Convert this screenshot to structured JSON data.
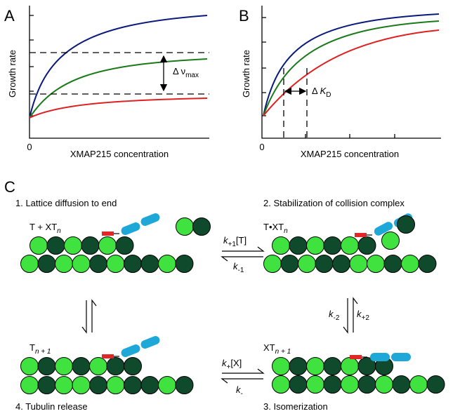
{
  "panels": [
    {
      "label": "A",
      "y_axis_label": "Growth rate",
      "x_axis_label": "XMAP215 concentration",
      "origin_label": "0",
      "annotation": {
        "parts": [
          {
            "text": "Δ ν"
          },
          {
            "text": "max",
            "sub": true
          }
        ]
      }
    },
    {
      "label": "B",
      "y_axis_label": "Growth rate",
      "x_axis_label": "XMAP215 concentration",
      "origin_label": "0",
      "annotation": {
        "parts": [
          {
            "text": "Δ "
          },
          {
            "text": "K",
            "italic": true
          },
          {
            "text": "D",
            "sub": true
          }
        ]
      }
    }
  ],
  "panel_c": {
    "label": "C",
    "steps": [
      {
        "title": "1.  Lattice diffusion to end",
        "state": {
          "parts": [
            {
              "text": "T + XT"
            },
            {
              "text": "n",
              "sub": true,
              "italic": true
            }
          ]
        }
      },
      {
        "title": "2.  Stabilization of collision complex",
        "state": {
          "parts": [
            {
              "text": "T•XT"
            },
            {
              "text": "n",
              "sub": true,
              "italic": true
            }
          ]
        }
      },
      {
        "title": "3.  Isomerization",
        "state": {
          "parts": [
            {
              "text": "XT"
            },
            {
              "text": "n + 1",
              "sub": true,
              "italic": true
            }
          ]
        }
      },
      {
        "title": "4.  Tubulin release",
        "state": {
          "parts": [
            {
              "text": "T"
            },
            {
              "text": "n + 1",
              "sub": true,
              "italic": true
            }
          ]
        }
      }
    ],
    "rates": [
      {
        "parts": [
          {
            "text": "k",
            "italic": true
          },
          {
            "text": "+1",
            "sub": true
          },
          {
            "text": "[T]"
          }
        ]
      },
      {
        "parts": [
          {
            "text": "k",
            "italic": true
          },
          {
            "text": "-1",
            "sub": true
          }
        ]
      },
      {
        "parts": [
          {
            "text": "k",
            "italic": true
          },
          {
            "text": "-2",
            "sub": true
          }
        ]
      },
      {
        "parts": [
          {
            "text": "k",
            "italic": true
          },
          {
            "text": "+2",
            "sub": true
          }
        ]
      },
      {
        "parts": [
          {
            "text": "k",
            "italic": true
          },
          {
            "text": "+",
            "sub": true
          },
          {
            "text": "[X]"
          }
        ]
      },
      {
        "parts": [
          {
            "text": "k",
            "italic": true
          },
          {
            "text": "-",
            "sub": true
          }
        ]
      }
    ]
  }
}
